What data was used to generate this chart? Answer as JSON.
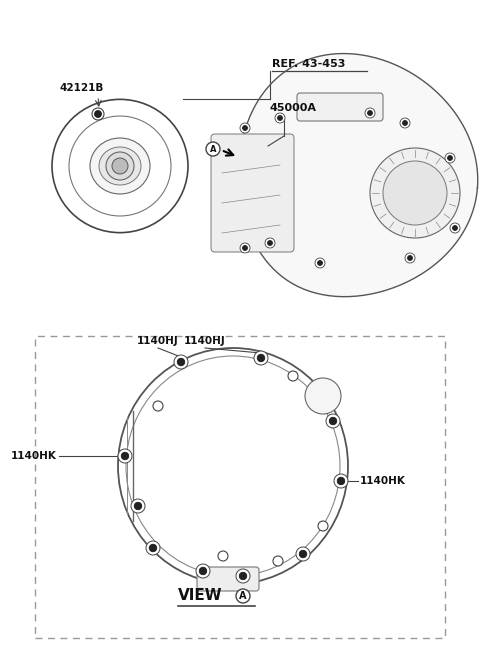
{
  "bg_color": "#ffffff",
  "fig_width": 4.8,
  "fig_height": 6.56,
  "dpi": 100,
  "label_42121B": "42121B",
  "label_45000A": "45000A",
  "label_REF": "REF. 43-453",
  "label_A_top": "A",
  "label_1140HJ_1": "1140HJ",
  "label_1140HJ_2": "1140HJ",
  "label_1140HK_left": "1140HK",
  "label_1140HK_right": "1140HK",
  "label_view": "VIEW",
  "label_A_view": "A",
  "line_color": "#444444",
  "text_color": "#111111",
  "bolt_color": "#333333"
}
